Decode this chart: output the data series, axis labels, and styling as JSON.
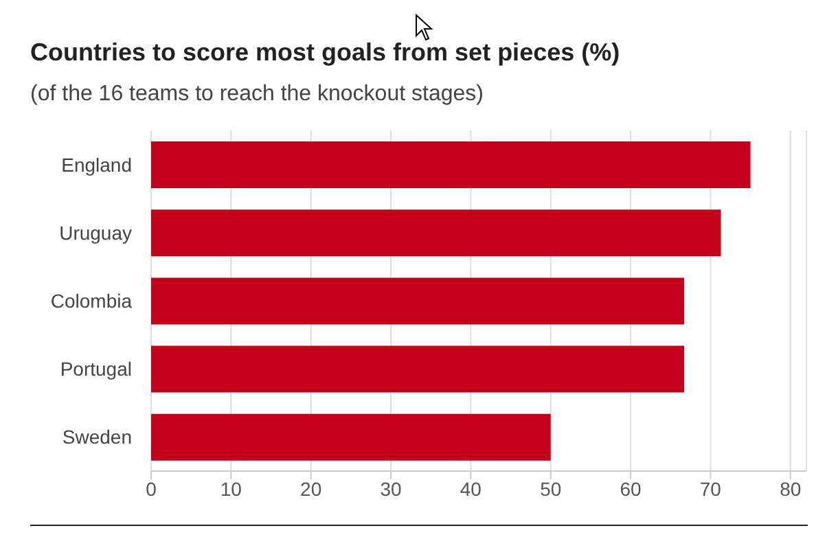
{
  "chart_data": {
    "type": "bar",
    "orientation": "horizontal",
    "title": "Countries to score most goals from set pieces (%)",
    "subtitle": "(of the 16 teams to reach the knockout stages)",
    "categories": [
      "England",
      "Uruguay",
      "Colombia",
      "Portugal",
      "Sweden"
    ],
    "values": [
      75,
      71.3,
      66.7,
      66.7,
      50
    ],
    "color": "#c5001a",
    "xlim": [
      0,
      82
    ],
    "xticks": [
      0,
      10,
      20,
      30,
      40,
      50,
      60,
      70,
      80
    ],
    "grid": "x"
  }
}
